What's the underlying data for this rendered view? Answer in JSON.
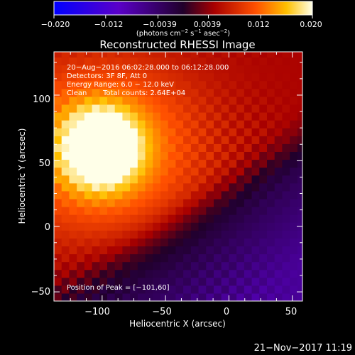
{
  "colorbar": {
    "ticks": [
      "−0.020",
      "−0.012",
      "−0.0039",
      "0.0039",
      "0.012",
      "0.020"
    ],
    "min": -0.02,
    "max": 0.02,
    "units_prefix": "(photons cm",
    "units_exp1": "−2",
    "units_mid1": " s",
    "units_exp2": "−1",
    "units_mid2": " asec",
    "units_exp3": "−2",
    "units_suffix": ")"
  },
  "chart_data": {
    "type": "heatmap",
    "title": "Reconstructed RHESSI Image",
    "xlabel": "Heliocentric X (arcsec)",
    "ylabel": "Heliocentric Y (arcsec)",
    "xlim": [
      -138,
      58
    ],
    "ylim": [
      -57,
      133
    ],
    "xticks": [
      -100,
      -50,
      0,
      50
    ],
    "yticks": [
      -50,
      0,
      50,
      100
    ],
    "xtick_labels": [
      "−100",
      "−50",
      "0",
      "50"
    ],
    "ytick_labels": [
      "−50",
      "0",
      "50",
      "100"
    ],
    "peak_position": [
      -101,
      60
    ],
    "annotations": {
      "line1": "20−Aug−2016 06:02:28.000 to 06:12:28.000",
      "line2": "Detectors: 3F 8F, Att 0",
      "line3": "Energy Range: 6.0 − 12.0 keV",
      "line4_a": "Clean",
      "line4_b": "Total counts: 2.64E+04",
      "peak_label": "Position of Peak = [−101,60]"
    },
    "colormap": "hot-blue"
  },
  "footer": {
    "timestamp": "21−Nov−2017 11:19"
  }
}
